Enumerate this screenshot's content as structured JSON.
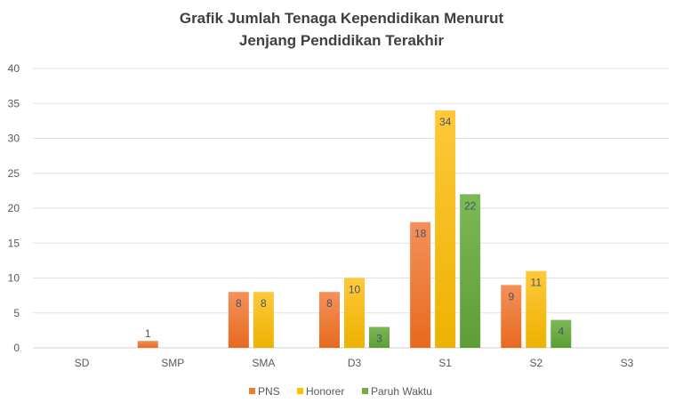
{
  "chart_data": {
    "type": "bar",
    "title": [
      "Grafik Jumlah Tenaga Kependidikan Menurut",
      "Jenjang Pendidikan Terakhir"
    ],
    "xlabel": "",
    "ylabel": "",
    "ylim": [
      0,
      40
    ],
    "yticks": [
      0,
      5,
      10,
      15,
      20,
      25,
      30,
      35,
      40
    ],
    "grid": true,
    "legend_position": "bottom",
    "categories": [
      "SD",
      "SMP",
      "SMA",
      "D3",
      "S1",
      "S2",
      "S3"
    ],
    "series": [
      {
        "name": "PNS",
        "color": "#ED7D31",
        "values": [
          0,
          1,
          8,
          8,
          18,
          9,
          0
        ]
      },
      {
        "name": "Honorer",
        "color": "#FFC000",
        "values": [
          0,
          0,
          8,
          10,
          34,
          11,
          0
        ]
      },
      {
        "name": "Paruh Waktu",
        "color": "#70AD47",
        "values": [
          0,
          0,
          0,
          3,
          22,
          4,
          0
        ]
      }
    ]
  }
}
